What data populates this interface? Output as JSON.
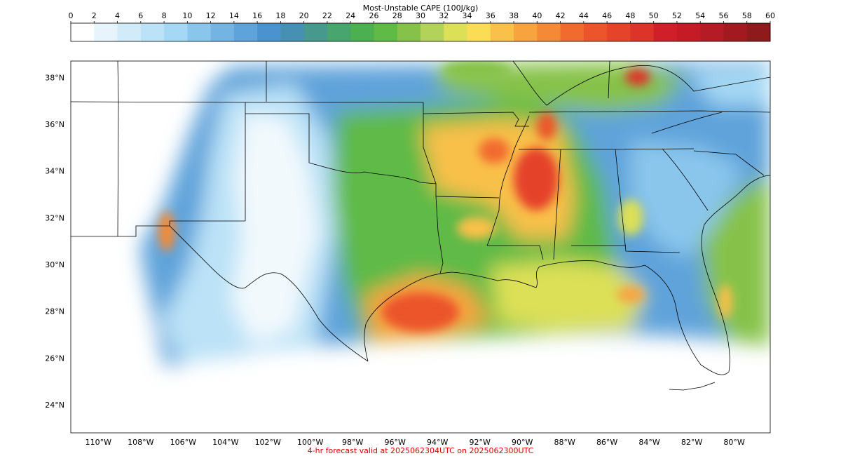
{
  "colorbar": {
    "title": "Most-Unstable CAPE (100J/kg)",
    "ticks": [
      0,
      2,
      4,
      6,
      8,
      10,
      12,
      14,
      16,
      18,
      20,
      22,
      24,
      26,
      28,
      30,
      32,
      34,
      36,
      38,
      40,
      42,
      44,
      46,
      48,
      50,
      52,
      54,
      56,
      58,
      60
    ],
    "range": [
      0,
      60
    ],
    "colors": [
      "#ffffff",
      "#e7f4fc",
      "#d2ebf9",
      "#bbe2f7",
      "#a5d8f4",
      "#8ac6ec",
      "#73b4e3",
      "#5ea3da",
      "#4b93cf",
      "#4690b4",
      "#46998c",
      "#48a56d",
      "#4caf50",
      "#5fba46",
      "#86c24a",
      "#b3d25a",
      "#dce056",
      "#fbdd55",
      "#f9c04a",
      "#f7a43f",
      "#f48a36",
      "#f16b2e",
      "#ec552b",
      "#e5432a",
      "#dc3429",
      "#d11f2a",
      "#c41b27",
      "#b41b24",
      "#a21a20",
      "#8e1a1c"
    ]
  },
  "map": {
    "lat_labels": [
      "24°N",
      "26°N",
      "28°N",
      "30°N",
      "32°N",
      "34°N",
      "36°N",
      "38°N"
    ],
    "lon_labels": [
      "110°W",
      "108°W",
      "106°W",
      "104°W",
      "102°W",
      "100°W",
      "98°W",
      "96°W",
      "94°W",
      "92°W",
      "90°W",
      "88°W",
      "86°W",
      "84°W",
      "82°W",
      "80°W"
    ],
    "lat_values": [
      24,
      26,
      28,
      30,
      32,
      34,
      36,
      38
    ],
    "lon_values": [
      -110,
      -108,
      -106,
      -104,
      -102,
      -100,
      -98,
      -96,
      -94,
      -92,
      -90,
      -88,
      -86,
      -84,
      -82,
      -80
    ],
    "extent": {
      "west": -111.3,
      "east": -78.3,
      "south": 22.8,
      "north": 38.7
    }
  },
  "caption": "4-hr forecast valid at 2025062304UTC on 2025062300UTC"
}
